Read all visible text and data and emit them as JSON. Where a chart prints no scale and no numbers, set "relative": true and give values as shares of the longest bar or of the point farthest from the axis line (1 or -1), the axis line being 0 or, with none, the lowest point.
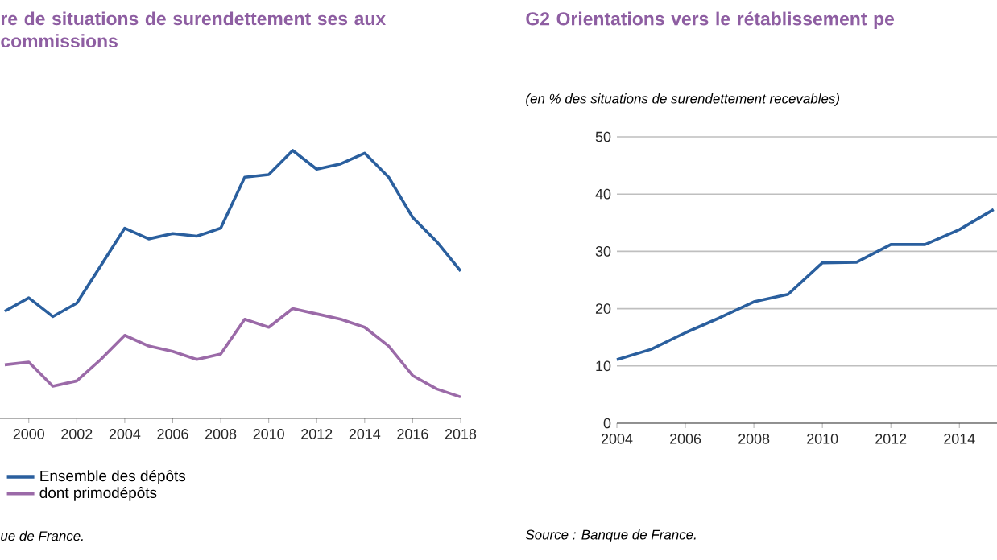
{
  "chart_data": [
    {
      "type": "line",
      "title": "re de situations de surendettement ses aux commissions",
      "x": [
        1999,
        2000,
        2001,
        2002,
        2003,
        2004,
        2005,
        2006,
        2007,
        2008,
        2009,
        2010,
        2011,
        2012,
        2013,
        2014,
        2015,
        2016,
        2017,
        2018
      ],
      "relative": true,
      "xlim": [
        1998.8,
        2018
      ],
      "xticks": [
        2000,
        2002,
        2004,
        2006,
        2008,
        2010,
        2012,
        2014,
        2016,
        2018
      ],
      "legend": "bottom",
      "line_style": "solid",
      "series": [
        {
          "name": "Ensemble des dépôts",
          "color": "#2a5f9e",
          "values": [
            0.4,
            0.45,
            0.38,
            0.43,
            0.57,
            0.71,
            0.67,
            0.69,
            0.68,
            0.71,
            0.9,
            0.91,
            1.0,
            0.93,
            0.95,
            0.99,
            0.9,
            0.75,
            0.66,
            0.55
          ]
        },
        {
          "name": "dont primodépôts",
          "color": "#9b6aa8",
          "values": [
            0.2,
            0.21,
            0.12,
            0.14,
            0.22,
            0.31,
            0.27,
            0.25,
            0.22,
            0.24,
            0.37,
            0.34,
            0.41,
            0.39,
            0.37,
            0.34,
            0.27,
            0.16,
            0.11,
            0.08
          ]
        }
      ],
      "annotations": [
        "ue de France."
      ]
    },
    {
      "type": "line",
      "title": "G2 Orientations vers le rétablissement pe",
      "subtitle": "(en % des situations de surendettement recevables)",
      "x": [
        2004,
        2005,
        2006,
        2007,
        2008,
        2009,
        2010,
        2011,
        2012,
        2013,
        2014,
        2015
      ],
      "values": [
        11.1,
        12.9,
        15.8,
        18.4,
        21.2,
        22.5,
        28.0,
        28.1,
        31.2,
        31.2,
        33.8,
        37.3
      ],
      "color": "#2a5f9e",
      "xlim": [
        2004,
        2015.1
      ],
      "ylim": [
        0,
        50
      ],
      "xticks": [
        2004,
        2006,
        2008,
        2010,
        2012,
        2014
      ],
      "yticks": [
        0,
        10,
        20,
        30,
        40,
        50
      ],
      "grid": "y",
      "line_style": "solid",
      "annotations": [
        "Source : Banque de France."
      ]
    }
  ]
}
